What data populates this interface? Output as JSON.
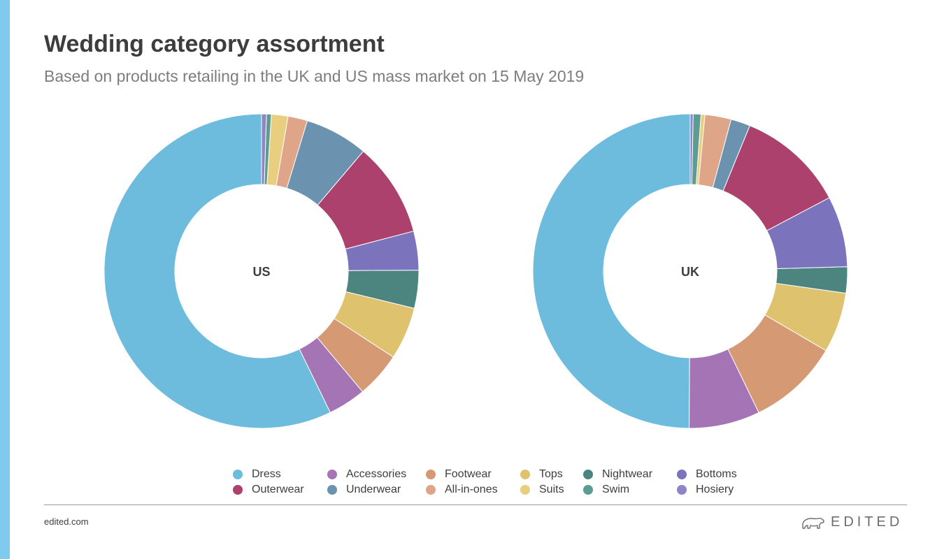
{
  "header": {
    "title": "Wedding category assortment",
    "subtitle": "Based on products retailing in the UK and US mass market on 15 May 2019"
  },
  "footer": {
    "link": "edited.com",
    "brand": "EDITED",
    "brand_icon": "polar-bear-icon"
  },
  "colors": {
    "Dress": "#6dbbdd",
    "Accessories": "#a474b4",
    "Footwear": "#d59a74",
    "Tops": "#dfc26e",
    "Nightwear": "#4c8480",
    "Bottoms": "#7b74bd",
    "Outerwear": "#ad416d",
    "Underwear": "#6b93b0",
    "All-in-ones": "#dea588",
    "Suits": "#e8ce7e",
    "Swim": "#5c9c92",
    "Hosiery": "#8c86c8"
  },
  "legend": [
    "Dress",
    "Accessories",
    "Footwear",
    "Tops",
    "Nightwear",
    "Bottoms",
    "Outerwear",
    "Underwear",
    "All-in-ones",
    "Suits",
    "Swim",
    "Hosiery"
  ],
  "chart_data": [
    {
      "type": "pie",
      "title": "US",
      "categories": [
        "Dress",
        "Accessories",
        "Footwear",
        "Tops",
        "Nightwear",
        "Bottoms",
        "Outerwear",
        "Underwear",
        "All-in-ones",
        "Suits",
        "Swim",
        "Hosiery"
      ],
      "values": [
        57.2,
        3.9,
        4.7,
        5.4,
        3.9,
        4.0,
        9.7,
        6.5,
        2.0,
        1.7,
        0.5,
        0.5
      ]
    },
    {
      "type": "pie",
      "title": "UK",
      "categories": [
        "Dress",
        "Accessories",
        "Footwear",
        "Tops",
        "Nightwear",
        "Bottoms",
        "Outerwear",
        "Underwear",
        "All-in-ones",
        "Suits",
        "Swim",
        "Hosiery"
      ],
      "values": [
        50.0,
        7.3,
        9.4,
        6.2,
        2.7,
        7.3,
        11.1,
        2.0,
        2.7,
        0.4,
        0.8,
        0.3
      ]
    }
  ]
}
